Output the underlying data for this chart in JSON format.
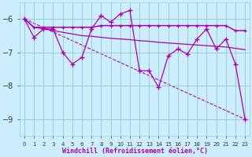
{
  "xlabel": "Windchill (Refroidissement éolien,°C)",
  "background_color": "#cceeff",
  "line_color": "#aa00aa",
  "grid_color": "#99cccc",
  "hours": [
    0,
    1,
    2,
    3,
    4,
    5,
    6,
    7,
    8,
    9,
    10,
    11,
    12,
    13,
    14,
    15,
    16,
    17,
    18,
    19,
    20,
    21,
    22,
    23
  ],
  "line1": [
    -6.0,
    -6.55,
    -6.3,
    -6.3,
    -7.0,
    -7.35,
    -7.15,
    -6.3,
    -5.9,
    -6.1,
    -5.85,
    -5.75,
    -7.55,
    -7.55,
    -8.05,
    -7.1,
    -6.9,
    -7.05,
    -6.6,
    -6.3,
    -6.9,
    -6.6,
    -7.35,
    -9.0
  ],
  "line2": [
    -6.0,
    -6.25,
    -6.25,
    -6.25,
    -6.25,
    -6.25,
    -6.25,
    -6.25,
    -6.2,
    -6.2,
    -6.2,
    -6.2,
    -6.2,
    -6.2,
    -6.2,
    -6.2,
    -6.2,
    -6.2,
    -6.2,
    -6.2,
    -6.2,
    -6.2,
    -6.35,
    -6.35
  ],
  "line3": [
    -6.0,
    -6.25,
    -6.3,
    -6.35,
    -6.4,
    -6.45,
    -6.5,
    -6.52,
    -6.55,
    -6.58,
    -6.6,
    -6.62,
    -6.65,
    -6.67,
    -6.7,
    -6.72,
    -6.74,
    -6.76,
    -6.78,
    -6.8,
    -6.82,
    -6.84,
    -6.88,
    -6.92
  ],
  "line4_x": [
    0,
    23
  ],
  "line4_y": [
    -6.0,
    -9.0
  ],
  "ylim": [
    -9.5,
    -5.5
  ],
  "yticks": [
    -9,
    -8,
    -7,
    -6
  ],
  "xlim": [
    -0.5,
    23.5
  ],
  "xtick_fontsize": 5,
  "ytick_fontsize": 7,
  "xlabel_fontsize": 6
}
